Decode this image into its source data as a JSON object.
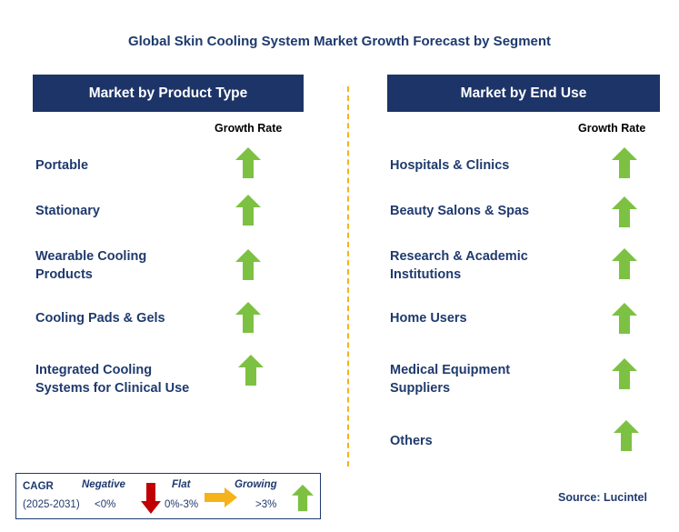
{
  "title": "Global Skin Cooling System Market Growth Forecast by Segment",
  "left_panel": {
    "header": "Market by Product Type",
    "growth_header": "Growth Rate",
    "items": [
      {
        "line1": "Portable",
        "line2": "",
        "trend": "growing"
      },
      {
        "line1": "Stationary",
        "line2": "",
        "trend": "growing"
      },
      {
        "line1": "Wearable Cooling",
        "line2": "Products",
        "trend": "growing"
      },
      {
        "line1": "Cooling Pads & Gels",
        "line2": "",
        "trend": "growing"
      },
      {
        "line1": "Integrated Cooling",
        "line2": "Systems for Clinical Use",
        "trend": "growing"
      }
    ]
  },
  "right_panel": {
    "header": "Market by End Use",
    "growth_header": "Growth Rate",
    "items": [
      {
        "line1": "Hospitals & Clinics",
        "line2": "",
        "trend": "growing"
      },
      {
        "line1": "Beauty Salons & Spas",
        "line2": "",
        "trend": "growing"
      },
      {
        "line1": "Research & Academic",
        "line2": "Institutions",
        "trend": "growing"
      },
      {
        "line1": "Home Users",
        "line2": "",
        "trend": "growing"
      },
      {
        "line1": "Medical Equipment",
        "line2": "Suppliers",
        "trend": "growing"
      },
      {
        "line1": "Others",
        "line2": "",
        "trend": "growing"
      }
    ]
  },
  "legend": {
    "cagr_label": "CAGR",
    "period": "(2025-2031)",
    "negative_label": "Negative",
    "negative_range": "<0%",
    "flat_label": "Flat",
    "flat_range": "0%-3%",
    "growing_label": "Growing",
    "growing_range": ">3%"
  },
  "source": "Source: Lucintel",
  "colors": {
    "header_bg": "#1d3468",
    "text_navy": "#1f3a6e",
    "arrow_green": "#7dc143",
    "arrow_red": "#c00000",
    "arrow_yellow": "#f5b21b",
    "divider": "#f5b21b"
  },
  "icons": {
    "growing": "green-up-arrow-icon",
    "flat": "yellow-right-arrow-icon",
    "negative": "red-down-arrow-icon"
  }
}
